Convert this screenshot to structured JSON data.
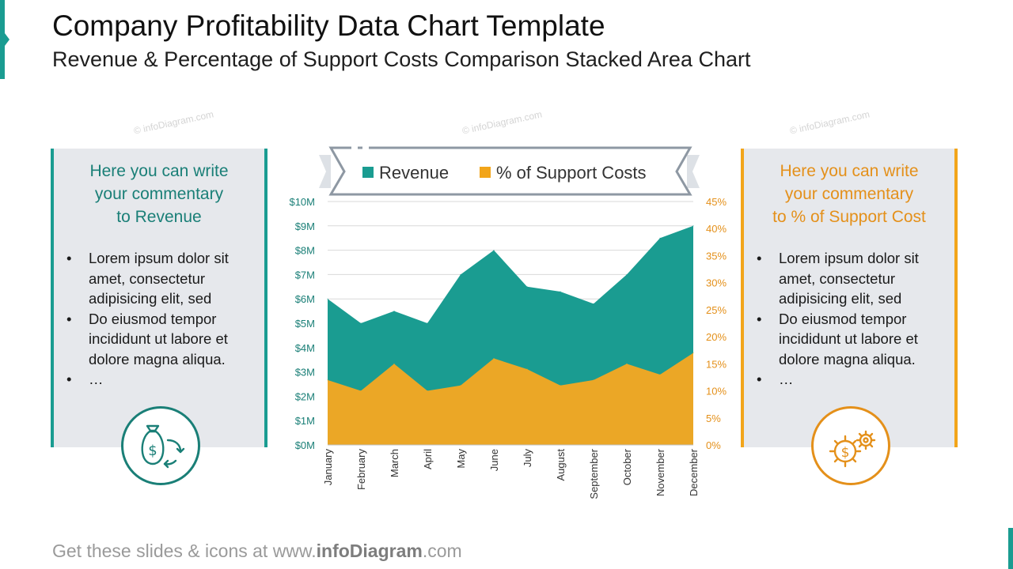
{
  "header": {
    "title": "Company Profitability Data Chart Template",
    "subtitle": "Revenue & Percentage of Support Costs Comparison Stacked Area Chart"
  },
  "watermark": "© infoDiagram.com",
  "left_panel": {
    "heading": "Here you can write\nyour commentary\nto Revenue",
    "bullets": [
      "Lorem ipsum dolor sit amet, consectetur adipisicing elit, sed",
      "Do eiusmod tempor incididunt ut labore et dolore magna aliqua.",
      "…"
    ],
    "icon": "money-bag-exchange-icon"
  },
  "right_panel": {
    "heading": "Here you can write\nyour commentary\nto % of Support Cost",
    "bullets": [
      "Lorem ipsum dolor sit amet, consectetur adipisicing elit, sed",
      "Do eiusmod tempor incididunt ut labore et dolore magna aliqua.",
      "…"
    ],
    "icon": "dollar-gears-icon"
  },
  "footer": {
    "prefix": "Get these slides & icons at www.",
    "brand": "infoDiagram",
    "suffix": ".com"
  },
  "colors": {
    "teal": "#1a9c91",
    "teal_dark": "#1a7f77",
    "orange": "#f2a51a",
    "orange_dark": "#e4901a",
    "panel_bg": "#e6e8ec"
  },
  "chart_data": {
    "type": "area",
    "stacked": false,
    "categories": [
      "January",
      "February",
      "March",
      "April",
      "May",
      "June",
      "July",
      "August",
      "September",
      "October",
      "November",
      "December"
    ],
    "series": [
      {
        "name": "Revenue",
        "axis": "left",
        "color": "#1a9c91",
        "values": [
          6.0,
          5.0,
          5.5,
          5.0,
          7.0,
          8.0,
          6.5,
          6.3,
          5.8,
          7.0,
          8.5,
          9.0
        ]
      },
      {
        "name": "% of Support Costs",
        "axis": "right",
        "color": "#eba726",
        "values": [
          12,
          10,
          15,
          10,
          11,
          16,
          14,
          11,
          12,
          15,
          13,
          17
        ]
      }
    ],
    "y_left": {
      "min": 0,
      "max": 10,
      "ticks": [
        "$0M",
        "$1M",
        "$2M",
        "$3M",
        "$4M",
        "$5M",
        "$6M",
        "$7M",
        "$8M",
        "$9M",
        "$10M"
      ]
    },
    "y_right": {
      "min": 0,
      "max": 45,
      "ticks": [
        "0%",
        "5%",
        "10%",
        "15%",
        "20%",
        "25%",
        "30%",
        "35%",
        "40%",
        "45%"
      ]
    },
    "grid": true,
    "legend_position": "top"
  }
}
